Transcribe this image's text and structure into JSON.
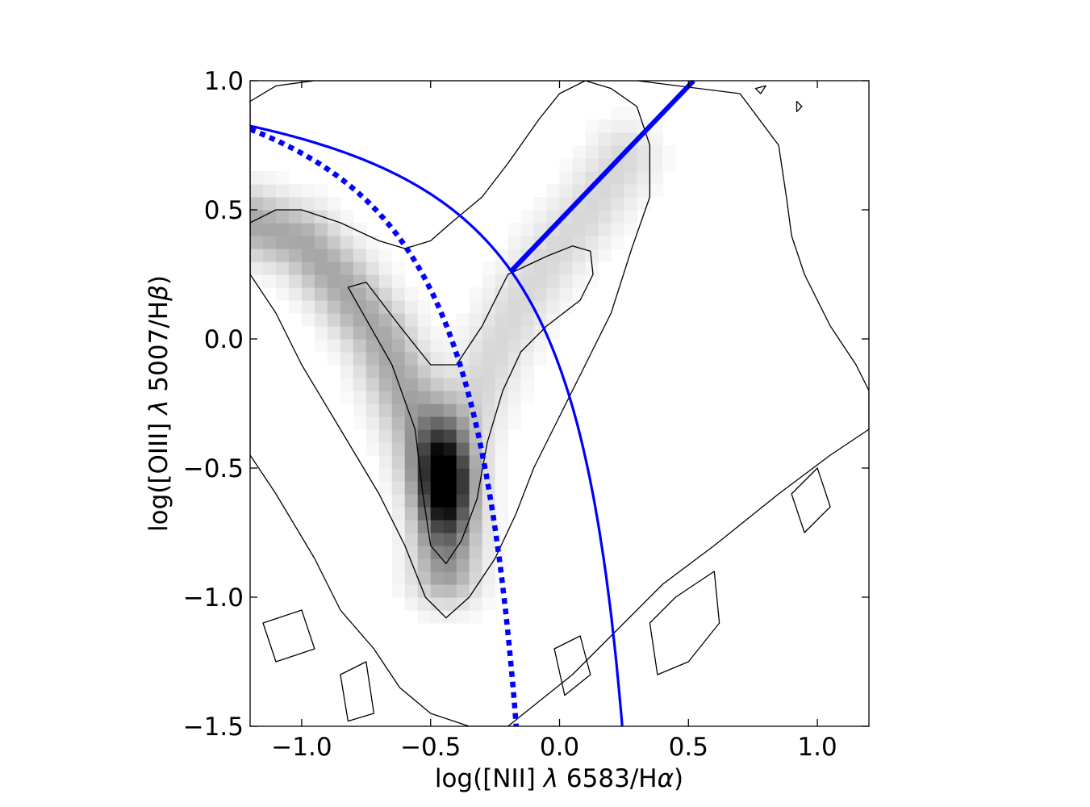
{
  "chart_data": {
    "type": "heatmap",
    "title": "",
    "xlabel": {
      "prefix": "log([NII] ",
      "lambda": "λ",
      "middle": " 6583/H",
      "greek": "α",
      "suffix": ")"
    },
    "ylabel": {
      "prefix": "log([OIII] ",
      "lambda": "λ",
      "middle": " 5007/H",
      "greek": "β",
      "suffix": ")"
    },
    "xlim": [
      -1.2,
      1.2
    ],
    "ylim": [
      -1.5,
      1.0
    ],
    "grid": false,
    "xticks": [
      {
        "value": -1.0,
        "label": "−1.0"
      },
      {
        "value": -0.5,
        "label": "−0.5"
      },
      {
        "value": 0.0,
        "label": "0.0"
      },
      {
        "value": 0.5,
        "label": "0.5"
      },
      {
        "value": 1.0,
        "label": "1.0"
      }
    ],
    "yticks": [
      {
        "value": 1.0,
        "label": "1.0"
      },
      {
        "value": 0.5,
        "label": "0.5"
      },
      {
        "value": 0.0,
        "label": "0.0"
      },
      {
        "value": -0.5,
        "label": "−0.5"
      },
      {
        "value": -1.0,
        "label": "−1.0"
      },
      {
        "value": -1.5,
        "label": "−1.5"
      }
    ],
    "density_ridges": [
      {
        "name": "star-forming-branch",
        "points": [
          [
            -1.2,
            0.45
          ],
          [
            -1.0,
            0.38
          ],
          [
            -0.85,
            0.22
          ],
          [
            -0.7,
            0.02
          ],
          [
            -0.6,
            -0.2
          ],
          [
            -0.5,
            -0.45
          ],
          [
            -0.45,
            -0.55
          ],
          [
            -0.43,
            -0.7
          ],
          [
            -0.44,
            -0.9
          ]
        ],
        "peak": 1.0
      },
      {
        "name": "agn-branch",
        "points": [
          [
            -0.45,
            -0.55
          ],
          [
            -0.35,
            -0.3
          ],
          [
            -0.25,
            -0.05
          ],
          [
            -0.15,
            0.15
          ],
          [
            -0.05,
            0.3
          ],
          [
            0.05,
            0.42
          ],
          [
            0.15,
            0.55
          ],
          [
            0.25,
            0.7
          ]
        ],
        "peak": 0.45
      }
    ],
    "density_peak": {
      "x": -0.45,
      "y": -0.55
    },
    "contour_levels": [
      {
        "name": "inner-contour",
        "points": [
          [
            -0.82,
            0.2
          ],
          [
            -0.75,
            0.22
          ],
          [
            -0.62,
            0.05
          ],
          [
            -0.5,
            -0.1
          ],
          [
            -0.4,
            -0.1
          ],
          [
            -0.3,
            0.05
          ],
          [
            -0.2,
            0.25
          ],
          [
            -0.05,
            0.32
          ],
          [
            0.05,
            0.36
          ],
          [
            0.12,
            0.34
          ],
          [
            0.13,
            0.25
          ],
          [
            0.08,
            0.15
          ],
          [
            -0.05,
            0.05
          ],
          [
            -0.15,
            -0.05
          ],
          [
            -0.22,
            -0.2
          ],
          [
            -0.28,
            -0.4
          ],
          [
            -0.32,
            -0.62
          ],
          [
            -0.38,
            -0.78
          ],
          [
            -0.44,
            -0.87
          ],
          [
            -0.5,
            -0.8
          ],
          [
            -0.53,
            -0.6
          ],
          [
            -0.56,
            -0.35
          ],
          [
            -0.65,
            -0.1
          ]
        ]
      },
      {
        "name": "middle-contour",
        "points": [
          [
            -1.2,
            0.45
          ],
          [
            -1.1,
            0.5
          ],
          [
            -1.0,
            0.5
          ],
          [
            -0.85,
            0.45
          ],
          [
            -0.7,
            0.38
          ],
          [
            -0.6,
            0.35
          ],
          [
            -0.5,
            0.38
          ],
          [
            -0.42,
            0.45
          ],
          [
            -0.3,
            0.55
          ],
          [
            -0.2,
            0.68
          ],
          [
            -0.08,
            0.85
          ],
          [
            0.0,
            0.95
          ],
          [
            0.1,
            1.0
          ],
          [
            0.2,
            0.97
          ],
          [
            0.3,
            0.9
          ],
          [
            0.35,
            0.75
          ],
          [
            0.35,
            0.55
          ],
          [
            0.28,
            0.35
          ],
          [
            0.2,
            0.1
          ],
          [
            0.1,
            -0.1
          ],
          [
            0.0,
            -0.3
          ],
          [
            -0.1,
            -0.5
          ],
          [
            -0.17,
            -0.68
          ],
          [
            -0.25,
            -0.85
          ],
          [
            -0.35,
            -1.0
          ],
          [
            -0.44,
            -1.08
          ],
          [
            -0.52,
            -1.0
          ],
          [
            -0.6,
            -0.8
          ],
          [
            -0.7,
            -0.6
          ],
          [
            -0.85,
            -0.35
          ],
          [
            -1.0,
            -0.1
          ],
          [
            -1.1,
            0.1
          ],
          [
            -1.2,
            0.25
          ]
        ]
      },
      {
        "name": "outer-contour",
        "points": [
          [
            -1.2,
            0.92
          ],
          [
            -1.1,
            0.98
          ],
          [
            -0.95,
            1.0
          ],
          [
            -0.6,
            1.0
          ],
          [
            -0.2,
            1.0
          ],
          [
            0.3,
            1.0
          ],
          [
            0.7,
            0.95
          ],
          [
            0.85,
            0.75
          ],
          [
            0.88,
            0.55
          ],
          [
            0.9,
            0.4
          ],
          [
            0.95,
            0.25
          ],
          [
            1.05,
            0.05
          ],
          [
            1.15,
            -0.1
          ],
          [
            1.2,
            -0.2
          ],
          [
            1.2,
            -0.35
          ],
          [
            1.05,
            -0.45
          ],
          [
            0.85,
            -0.6
          ],
          [
            0.6,
            -0.8
          ],
          [
            0.4,
            -0.95
          ],
          [
            0.2,
            -1.15
          ],
          [
            0.05,
            -1.3
          ],
          [
            -0.1,
            -1.42
          ],
          [
            -0.2,
            -1.5
          ],
          [
            -0.35,
            -1.5
          ],
          [
            -0.5,
            -1.45
          ],
          [
            -0.62,
            -1.35
          ],
          [
            -0.72,
            -1.2
          ],
          [
            -0.85,
            -1.05
          ],
          [
            -0.95,
            -0.85
          ],
          [
            -1.1,
            -0.6
          ],
          [
            -1.2,
            -0.45
          ]
        ]
      }
    ],
    "contour_islands": [
      [
        [
          0.78,
          0.95
        ],
        [
          0.8,
          0.98
        ],
        [
          0.76,
          0.97
        ]
      ],
      [
        [
          0.92,
          0.88
        ],
        [
          0.94,
          0.9
        ],
        [
          0.92,
          0.92
        ]
      ],
      [
        [
          -1.15,
          -1.1
        ],
        [
          -1.0,
          -1.05
        ],
        [
          -0.95,
          -1.2
        ],
        [
          -1.1,
          -1.25
        ]
      ],
      [
        [
          -0.85,
          -1.3
        ],
        [
          -0.75,
          -1.25
        ],
        [
          -0.72,
          -1.45
        ],
        [
          -0.82,
          -1.48
        ]
      ],
      [
        [
          0.35,
          -1.1
        ],
        [
          0.45,
          -1.0
        ],
        [
          0.6,
          -0.9
        ],
        [
          0.62,
          -1.1
        ],
        [
          0.5,
          -1.25
        ],
        [
          0.38,
          -1.3
        ]
      ],
      [
        [
          0.9,
          -0.6
        ],
        [
          1.0,
          -0.5
        ],
        [
          1.05,
          -0.65
        ],
        [
          0.95,
          -0.75
        ]
      ],
      [
        [
          -0.02,
          -1.2
        ],
        [
          0.08,
          -1.15
        ],
        [
          0.12,
          -1.3
        ],
        [
          0.02,
          -1.38
        ]
      ]
    ],
    "series": [
      {
        "name": "",
        "kind": "demarcation",
        "style": "solid",
        "function": "kewley_2001",
        "x": [
          -1.2,
          -1.0,
          -0.8,
          -0.6,
          -0.4,
          -0.2,
          0.0,
          0.1,
          0.2,
          0.26
        ],
        "y": [
          0.82,
          0.76,
          0.69,
          0.58,
          0.45,
          0.25,
          -0.07,
          -0.38,
          -0.9,
          -1.5
        ]
      },
      {
        "name": "",
        "kind": "demarcation",
        "style": "dotted",
        "function": "kauffmann_2003",
        "x": [
          -1.2,
          -1.0,
          -0.8,
          -0.6,
          -0.4,
          -0.3,
          -0.25,
          -0.2,
          -0.16
        ],
        "y": [
          0.82,
          0.75,
          0.62,
          0.38,
          -0.03,
          -0.36,
          -0.6,
          -0.98,
          -1.5
        ]
      },
      {
        "name": "",
        "kind": "demarcation",
        "style": "thick-solid",
        "function": "seyfert_liner",
        "x": [
          -0.19,
          0.52
        ],
        "y": [
          0.26,
          1.0
        ]
      }
    ]
  }
}
